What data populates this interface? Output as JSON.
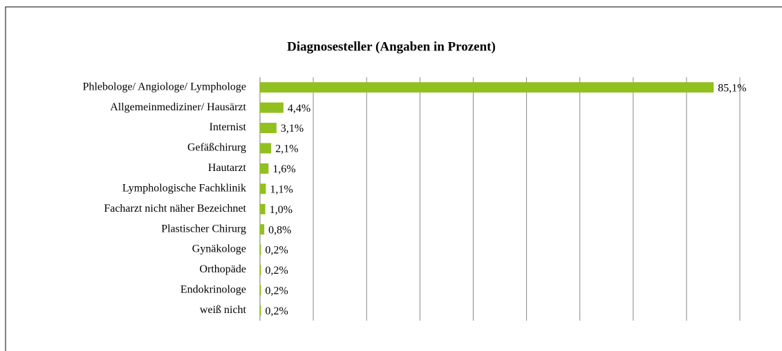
{
  "chart_data": {
    "type": "bar",
    "orientation": "horizontal",
    "title": "Diagnosesteller (Angaben in Prozent)",
    "categories": [
      "Phlebologe/ Angiologe/ Lymphologe",
      "Allgemeinmediziner/ Hausärzt",
      "Internist",
      "Gefäßchirurg",
      "Hautarzt",
      "Lymphologische Fachklinik",
      "Facharzt nicht näher Bezeichnet",
      "Plastischer Chirurg",
      "Gynäkologe",
      "Orthopäde",
      "Endokrinologe",
      "weiß nicht"
    ],
    "values": [
      85.1,
      4.4,
      3.1,
      2.1,
      1.6,
      1.1,
      1.0,
      0.8,
      0.2,
      0.2,
      0.2,
      0.2
    ],
    "value_labels": [
      "85,1%",
      "4,4%",
      "3,1%",
      "2,1%",
      "1,6%",
      "1,1%",
      "1,0%",
      "0,8%",
      "0,2%",
      "0,2%",
      "0,2%",
      "0,2%"
    ],
    "color": "#92c01f",
    "xlim": [
      0,
      90
    ],
    "xticks": [
      0,
      10,
      20,
      30,
      40,
      50,
      60,
      70,
      80,
      90
    ],
    "grid": true
  }
}
